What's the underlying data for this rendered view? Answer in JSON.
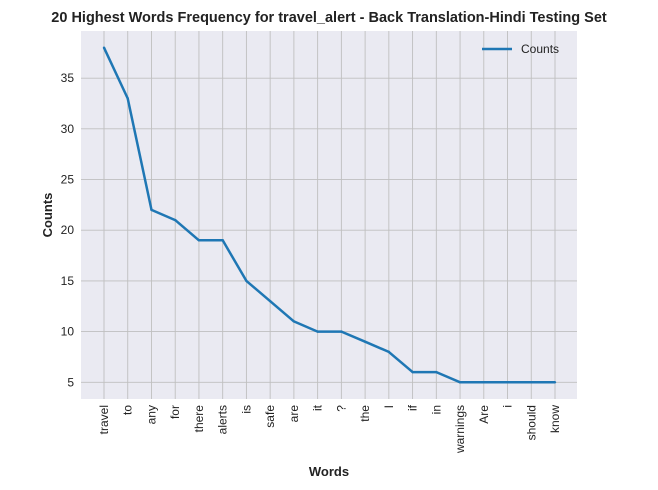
{
  "chart_data": {
    "type": "line",
    "title": "20 Highest Words Frequency for travel_alert - Back Translation-Hindi Testing Set",
    "xlabel": "Words",
    "ylabel": "Counts",
    "categories": [
      "travel",
      "to",
      "any",
      "for",
      "there",
      "alerts",
      "is",
      "safe",
      "are",
      "it",
      "?",
      "the",
      "I",
      "if",
      "in",
      "warnings",
      "Are",
      "i",
      "should",
      "know"
    ],
    "series": [
      {
        "name": "Counts",
        "values": [
          38,
          33,
          22,
          21,
          19,
          19,
          15,
          13,
          11,
          10,
          10,
          9,
          8,
          6,
          6,
          5,
          5,
          5,
          5,
          5
        ],
        "color": "#1f77b4"
      }
    ],
    "yticks": [
      5,
      10,
      15,
      20,
      25,
      30,
      35
    ],
    "ylim": [
      3.35,
      39.65
    ],
    "grid": true,
    "legend_position": "top-right",
    "background_color": "#eaeaf2",
    "grid_color": "#bfbfbf"
  }
}
